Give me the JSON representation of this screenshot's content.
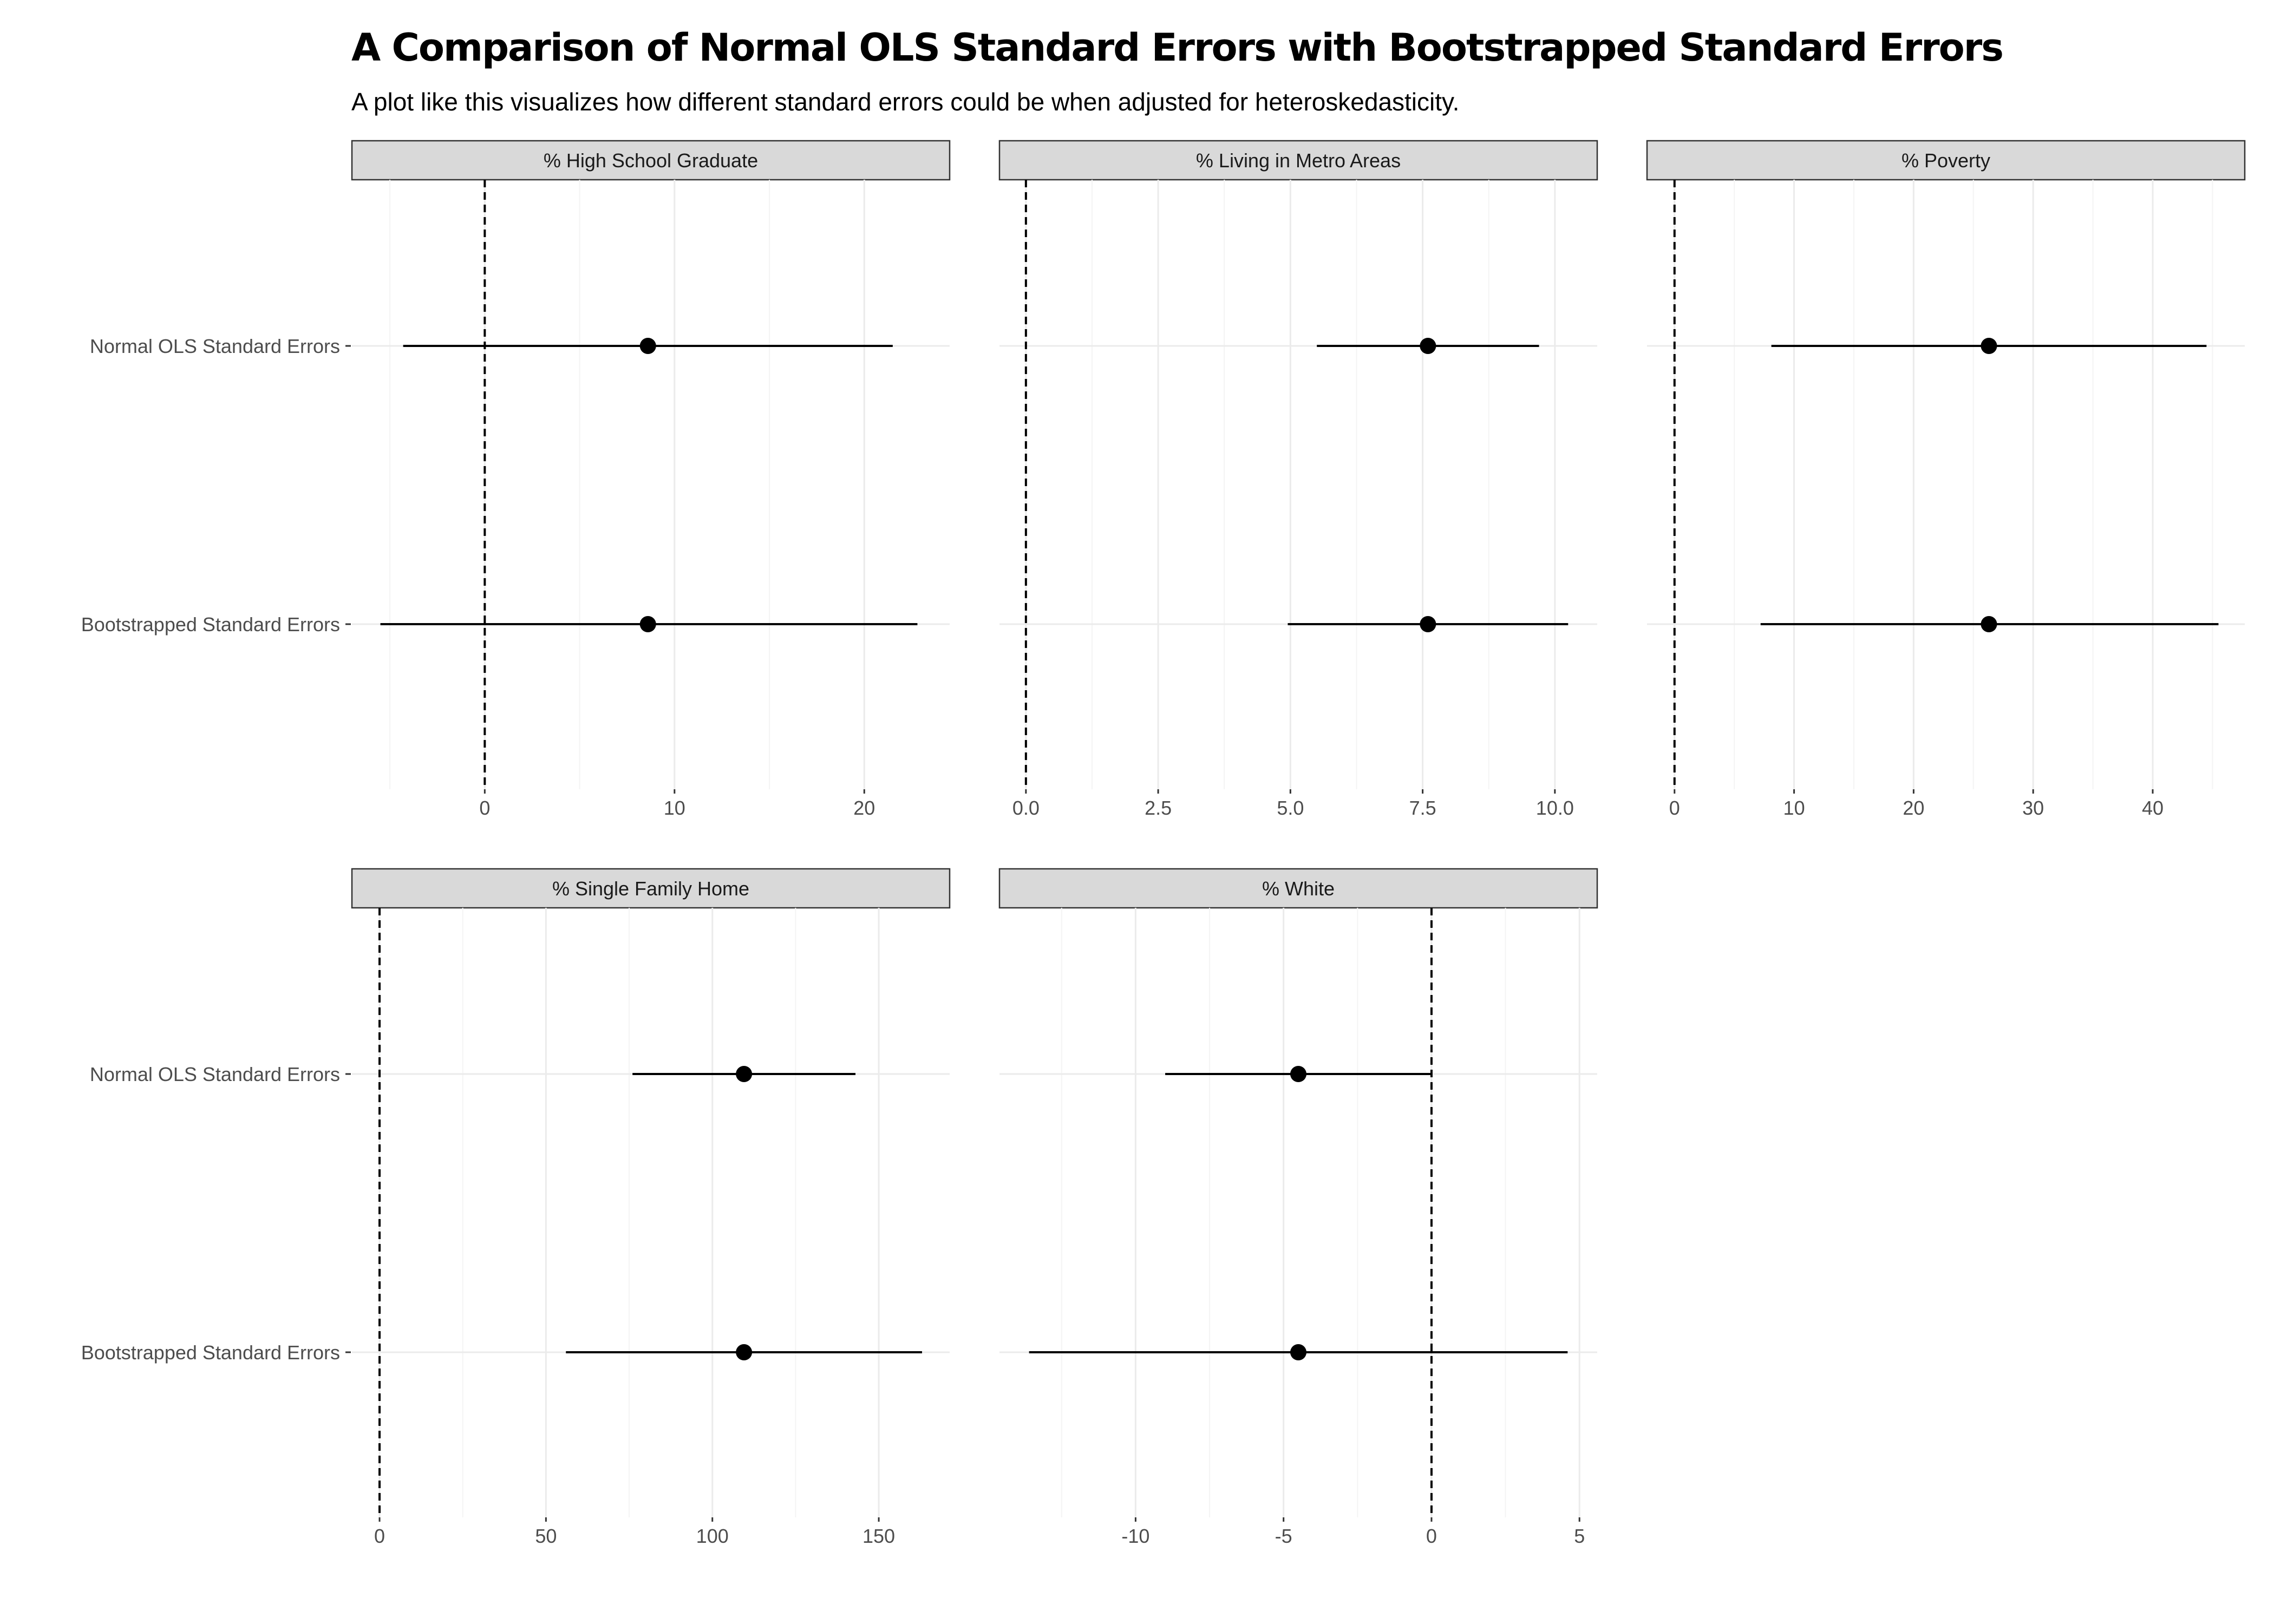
{
  "title": "A Comparison of Normal OLS Standard Errors with Bootstrapped Standard Errors",
  "subtitle": "A plot like this visualizes how different standard errors could be when adjusted for heteroskedasticity.",
  "colors": {
    "strip_fill": "#d9d9d9",
    "strip_border": "#333333",
    "grid_major": "#ebebeb",
    "grid_minor": "#f4f4f4",
    "point": "#000000",
    "reference_line": "#000000"
  },
  "chart_data": {
    "type": "scatter",
    "geometry": "point-range (coefficient with confidence interval), faceted",
    "categories": [
      "Normal OLS Standard Errors",
      "Bootstrapped Standard Errors"
    ],
    "reference_line": {
      "x": 0,
      "style": "dashed"
    },
    "grid": true,
    "facets": [
      {
        "label": "% High School Graduate",
        "xlim": [
          -7,
          24.5
        ],
        "ticks": [
          0,
          10,
          20
        ],
        "tick_labels": [
          "0",
          "10",
          "20"
        ],
        "minor_ticks": [
          -5,
          5,
          15
        ],
        "series": [
          {
            "category": "Normal OLS Standard Errors",
            "estimate": 8.6,
            "low": -4.3,
            "high": 21.5
          },
          {
            "category": "Bootstrapped Standard Errors",
            "estimate": 8.6,
            "low": -5.5,
            "high": 22.8
          }
        ]
      },
      {
        "label": "% Living in Metro Areas",
        "xlim": [
          -0.5,
          10.8
        ],
        "ticks": [
          0,
          2.5,
          5,
          7.5,
          10
        ],
        "tick_labels": [
          "0.0",
          "2.5",
          "5.0",
          "7.5",
          "10.0"
        ],
        "minor_ticks": [
          1.25,
          3.75,
          6.25,
          8.75
        ],
        "series": [
          {
            "category": "Normal OLS Standard Errors",
            "estimate": 7.6,
            "low": 5.5,
            "high": 9.7
          },
          {
            "category": "Bootstrapped Standard Errors",
            "estimate": 7.6,
            "low": 4.95,
            "high": 10.25
          }
        ]
      },
      {
        "label": "% Poverty",
        "xlim": [
          -2.3,
          47.7
        ],
        "ticks": [
          0,
          10,
          20,
          30,
          40
        ],
        "tick_labels": [
          "0",
          "10",
          "20",
          "30",
          "40"
        ],
        "minor_ticks": [
          5,
          15,
          25,
          35,
          45
        ],
        "series": [
          {
            "category": "Normal OLS Standard Errors",
            "estimate": 26.3,
            "low": 8.1,
            "high": 44.5
          },
          {
            "category": "Bootstrapped Standard Errors",
            "estimate": 26.3,
            "low": 7.2,
            "high": 45.5
          }
        ]
      },
      {
        "label": "% Single Family Home",
        "xlim": [
          -8.3,
          171.3
        ],
        "ticks": [
          0,
          50,
          100,
          150
        ],
        "tick_labels": [
          "0",
          "50",
          "100",
          "150"
        ],
        "minor_ticks": [
          25,
          75,
          125
        ],
        "series": [
          {
            "category": "Normal OLS Standard Errors",
            "estimate": 109.5,
            "low": 76,
            "high": 143
          },
          {
            "category": "Bootstrapped Standard Errors",
            "estimate": 109.5,
            "low": 56,
            "high": 163
          }
        ]
      },
      {
        "label": "% White",
        "xlim": [
          -14.6,
          5.6
        ],
        "ticks": [
          -10,
          -5,
          0,
          5
        ],
        "tick_labels": [
          "-10",
          "-5",
          "0",
          "5"
        ],
        "minor_ticks": [
          -12.5,
          -7.5,
          -2.5,
          2.5
        ],
        "series": [
          {
            "category": "Normal OLS Standard Errors",
            "estimate": -4.5,
            "low": -9.0,
            "high": 0.0
          },
          {
            "category": "Bootstrapped Standard Errors",
            "estimate": -4.5,
            "low": -13.6,
            "high": 4.6
          }
        ]
      }
    ]
  }
}
